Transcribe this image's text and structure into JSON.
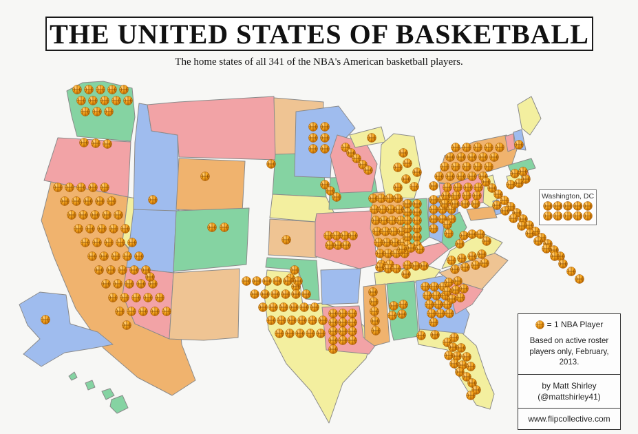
{
  "header": {
    "title": "THE UNITED STATES OF BASKETBALL",
    "subtitle": "The home states of all 341 of the NBA's American basketball players."
  },
  "total_players": 341,
  "dc_callout": {
    "label": "Washington, DC",
    "players": 10
  },
  "legend": {
    "key_text": "= 1 NBA Player",
    "note": "Based on active roster players only, February, 2013.",
    "author": "by Matt Shirley",
    "handle": "(@mattshirley41)",
    "website": "www.flipcollective.com"
  },
  "palette": {
    "green": "#85d3a2",
    "pink": "#f2a3a6",
    "blue": "#9fbcee",
    "yellow": "#f3ef9f",
    "orange": "#f0b36e",
    "tan": "#efc493"
  },
  "ball_colors": {
    "highlight": "#ffd284",
    "main": "#f8a81e",
    "shadow": "#b96300",
    "lines": "#8a4a00"
  },
  "states": [
    {
      "abbr": "WA",
      "name": "Washington",
      "color": "green",
      "players": 13
    },
    {
      "abbr": "OR",
      "name": "Oregon",
      "color": "pink",
      "players": 3
    },
    {
      "abbr": "CA",
      "name": "California",
      "color": "orange",
      "players": 51
    },
    {
      "abbr": "NV",
      "name": "Nevada",
      "color": "yellow",
      "players": 0
    },
    {
      "abbr": "ID",
      "name": "Idaho",
      "color": "blue",
      "players": 1
    },
    {
      "abbr": "MT",
      "name": "Montana",
      "color": "pink",
      "players": 0
    },
    {
      "abbr": "WY",
      "name": "Wyoming",
      "color": "orange",
      "players": 1
    },
    {
      "abbr": "UT",
      "name": "Utah",
      "color": "blue",
      "players": 0
    },
    {
      "abbr": "CO",
      "name": "Colorado",
      "color": "green",
      "players": 2
    },
    {
      "abbr": "AZ",
      "name": "Arizona",
      "color": "pink",
      "players": 1
    },
    {
      "abbr": "NM",
      "name": "New Mexico",
      "color": "tan",
      "players": 0
    },
    {
      "abbr": "ND",
      "name": "North Dakota",
      "color": "tan",
      "players": 0
    },
    {
      "abbr": "SD",
      "name": "South Dakota",
      "color": "green",
      "players": 1
    },
    {
      "abbr": "NE",
      "name": "Nebraska",
      "color": "yellow",
      "players": 0
    },
    {
      "abbr": "KS",
      "name": "Kansas",
      "color": "tan",
      "players": 1
    },
    {
      "abbr": "OK",
      "name": "Oklahoma",
      "color": "green",
      "players": 3
    },
    {
      "abbr": "TX",
      "name": "Texas",
      "color": "yellow",
      "players": 29
    },
    {
      "abbr": "MN",
      "name": "Minnesota",
      "color": "blue",
      "players": 6
    },
    {
      "abbr": "IA",
      "name": "Iowa",
      "color": "green",
      "players": 3
    },
    {
      "abbr": "MO",
      "name": "Missouri",
      "color": "pink",
      "players": 7
    },
    {
      "abbr": "AR",
      "name": "Arkansas",
      "color": "blue",
      "players": 0
    },
    {
      "abbr": "LA",
      "name": "Louisiana",
      "color": "pink",
      "players": 13
    },
    {
      "abbr": "WI",
      "name": "Wisconsin",
      "color": "pink",
      "players": 5
    },
    {
      "abbr": "IL",
      "name": "Illinois",
      "color": "orange",
      "players": 26
    },
    {
      "abbr": "MI",
      "name": "Michigan",
      "color": "yellow",
      "players": 8
    },
    {
      "abbr": "IN",
      "name": "Indiana",
      "color": "green",
      "players": 12
    },
    {
      "abbr": "OH",
      "name": "Ohio",
      "color": "blue",
      "players": 10
    },
    {
      "abbr": "KY",
      "name": "Kentucky",
      "color": "pink",
      "players": 3
    },
    {
      "abbr": "TN",
      "name": "Tennessee",
      "color": "yellow",
      "players": 7
    },
    {
      "abbr": "MS",
      "name": "Mississippi",
      "color": "orange",
      "players": 5
    },
    {
      "abbr": "AL",
      "name": "Alabama",
      "color": "green",
      "players": 4
    },
    {
      "abbr": "GA",
      "name": "Georgia",
      "color": "blue",
      "players": 13
    },
    {
      "abbr": "SC",
      "name": "South Carolina",
      "color": "pink",
      "players": 7
    },
    {
      "abbr": "NC",
      "name": "North Carolina",
      "color": "tan",
      "players": 8
    },
    {
      "abbr": "VA",
      "name": "Virginia",
      "color": "yellow",
      "players": 5
    },
    {
      "abbr": "WV",
      "name": "West Virginia",
      "color": "green",
      "players": 2
    },
    {
      "abbr": "FL",
      "name": "Florida",
      "color": "yellow",
      "players": 17
    },
    {
      "abbr": "NY",
      "name": "New York",
      "color": "orange",
      "players": 21
    },
    {
      "abbr": "PA",
      "name": "Pennsylvania",
      "color": "pink",
      "players": 12
    },
    {
      "abbr": "NJ",
      "name": "New Jersey",
      "color": "yellow",
      "players": 13
    },
    {
      "abbr": "MD",
      "name": "Maryland",
      "color": "orange",
      "players": 10
    },
    {
      "abbr": "DE",
      "name": "Delaware",
      "color": "blue",
      "players": 1
    },
    {
      "abbr": "CT",
      "name": "Connecticut",
      "color": "yellow",
      "players": 2
    },
    {
      "abbr": "RI",
      "name": "Rhode Island",
      "color": "pink",
      "players": 1
    },
    {
      "abbr": "MA",
      "name": "Massachusetts",
      "color": "green",
      "players": 2
    },
    {
      "abbr": "VT",
      "name": "Vermont",
      "color": "pink",
      "players": 0
    },
    {
      "abbr": "NH",
      "name": "New Hampshire",
      "color": "blue",
      "players": 1
    },
    {
      "abbr": "ME",
      "name": "Maine",
      "color": "yellow",
      "players": 0
    },
    {
      "abbr": "AK",
      "name": "Alaska",
      "color": "blue",
      "players": 1
    },
    {
      "abbr": "HI",
      "name": "Hawaii",
      "color": "green",
      "players": 0
    }
  ]
}
